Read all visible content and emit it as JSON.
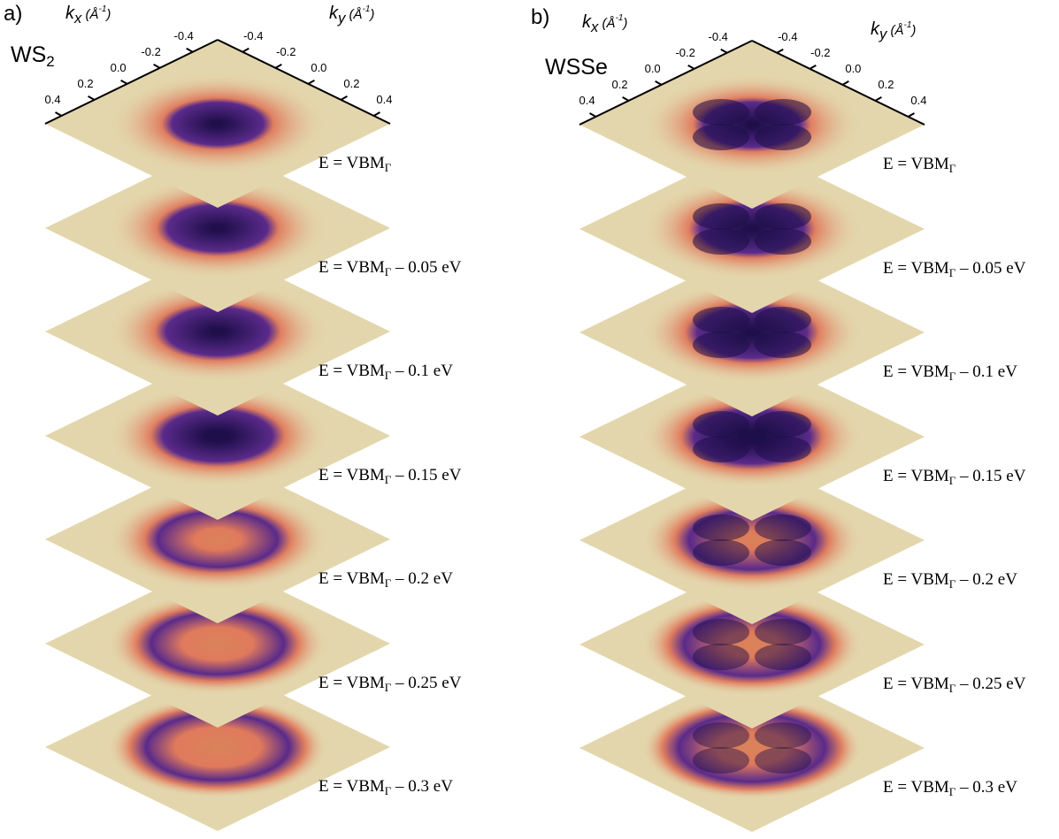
{
  "panels": [
    {
      "letter": "a)",
      "sample": {
        "base": "WS",
        "sub": "2"
      },
      "kx_label": {
        "sym": "k",
        "sub": "x",
        "unit": "Å",
        "sup": "-1"
      },
      "ky_label": {
        "sym": "k",
        "sub": "y",
        "unit": "Å",
        "sup": "-1"
      },
      "kx_ticks": [
        "0.4",
        "0.2",
        "0.0",
        "-0.2",
        "-0.4"
      ],
      "ky_ticks": [
        "-0.4",
        "-0.2",
        "0.0",
        "0.2",
        "0.4"
      ],
      "slices": [
        {
          "label_pre": "E = VBM",
          "label_sub": "Γ",
          "label_post": "",
          "ring": 0.0,
          "core": 0.55,
          "lobes": 0
        },
        {
          "label_pre": "E = VBM",
          "label_sub": "Γ",
          "label_post": " – 0.05 eV",
          "ring": 0.05,
          "core": 0.6,
          "lobes": 0
        },
        {
          "label_pre": "E = VBM",
          "label_sub": "Γ",
          "label_post": " – 0.1 eV",
          "ring": 0.1,
          "core": 0.62,
          "lobes": 0
        },
        {
          "label_pre": "E = VBM",
          "label_sub": "Γ",
          "label_post": " – 0.15 eV",
          "ring": 0.2,
          "core": 0.66,
          "lobes": 0
        },
        {
          "label_pre": "E = VBM",
          "label_sub": "Γ",
          "label_post": " – 0.2 eV",
          "ring": 0.38,
          "core": 0.72,
          "lobes": 0
        },
        {
          "label_pre": "E = VBM",
          "label_sub": "Γ",
          "label_post": " – 0.25 eV",
          "ring": 0.58,
          "core": 0.8,
          "lobes": 0
        },
        {
          "label_pre": "E = VBM",
          "label_sub": "Γ",
          "label_post": " – 0.3 eV",
          "ring": 0.7,
          "core": 0.86,
          "lobes": 0
        }
      ]
    },
    {
      "letter": "b)",
      "sample": {
        "base": "WSSe",
        "sub": ""
      },
      "kx_label": {
        "sym": "k",
        "sub": "x",
        "unit": "Å",
        "sup": "-1"
      },
      "ky_label": {
        "sym": "k",
        "sub": "y",
        "unit": "Å",
        "sup": "-1"
      },
      "kx_ticks": [
        "0.4",
        "0.2",
        "0.0",
        "-0.2",
        "-0.4"
      ],
      "ky_ticks": [
        "-0.4",
        "-0.2",
        "0.0",
        "0.2",
        "0.4"
      ],
      "slices": [
        {
          "label_pre": "E = VBM",
          "label_sub": "Γ",
          "label_post": "",
          "ring": 0.05,
          "core": 0.58,
          "lobes": 1
        },
        {
          "label_pre": "E = VBM",
          "label_sub": "Γ",
          "label_post": " – 0.05 eV",
          "ring": 0.1,
          "core": 0.62,
          "lobes": 1
        },
        {
          "label_pre": "E = VBM",
          "label_sub": "Γ",
          "label_post": " – 0.1 eV",
          "ring": 0.12,
          "core": 0.66,
          "lobes": 1
        },
        {
          "label_pre": "E = VBM",
          "label_sub": "Γ",
          "label_post": " – 0.15 eV",
          "ring": 0.22,
          "core": 0.7,
          "lobes": 1
        },
        {
          "label_pre": "E = VBM",
          "label_sub": "Γ",
          "label_post": " – 0.2 eV",
          "ring": 0.32,
          "core": 0.76,
          "lobes": 1
        },
        {
          "label_pre": "E = VBM",
          "label_sub": "Γ",
          "label_post": " – 0.25 eV",
          "ring": 0.45,
          "core": 0.82,
          "lobes": 1
        },
        {
          "label_pre": "E = VBM",
          "label_sub": "Γ",
          "label_post": " – 0.3 eV",
          "ring": 0.58,
          "core": 0.88,
          "lobes": 1
        }
      ]
    }
  ],
  "colors": {
    "plane": "#e3d6ac",
    "halo": "#e07a5c",
    "ring": "#5a2a8a",
    "core": "#1e0f4a",
    "center": "#d9835a",
    "axis": "#000000"
  }
}
